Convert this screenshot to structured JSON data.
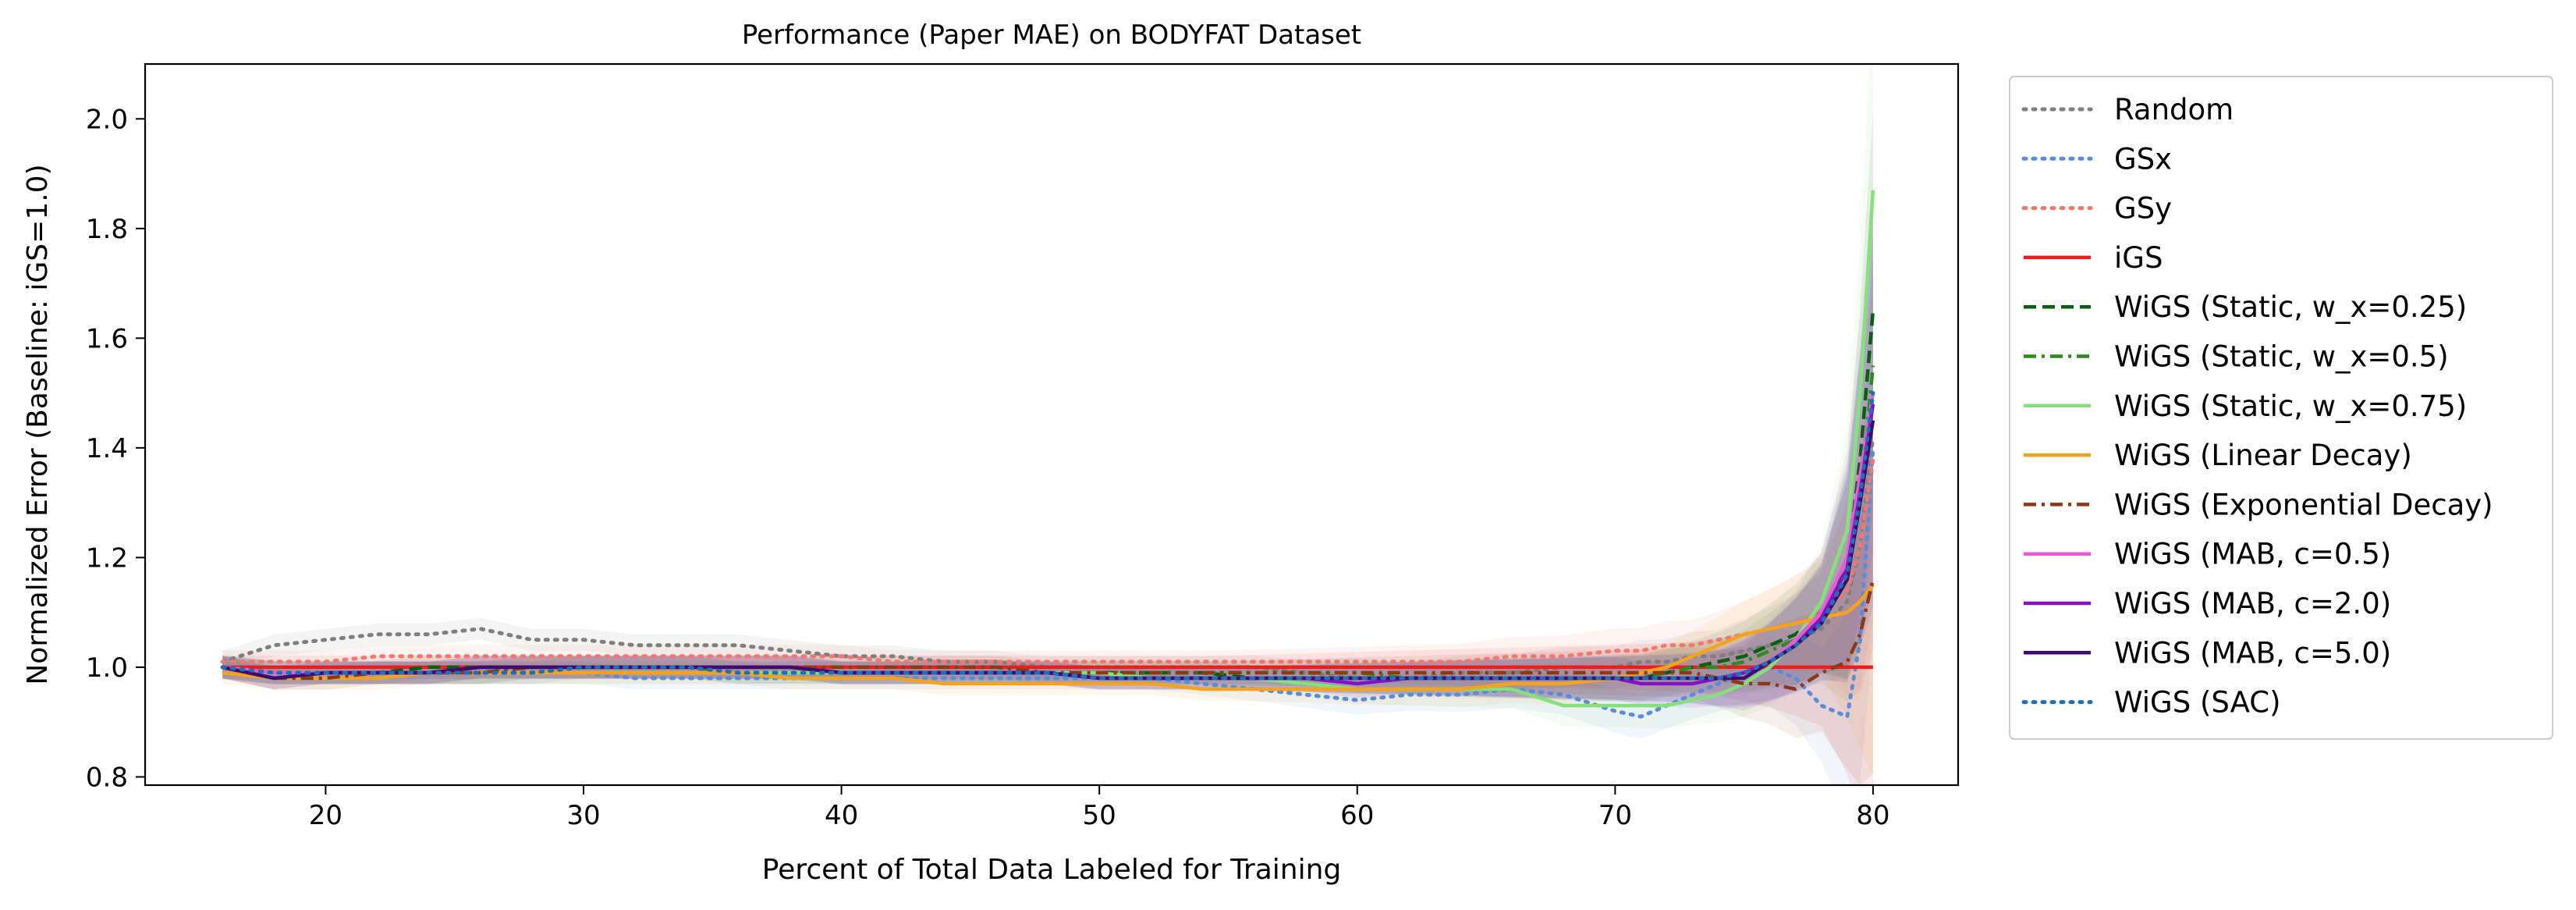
{
  "chart_data": {
    "type": "line",
    "title": "Performance (Paper MAE) on BODYFAT Dataset",
    "xlabel": "Percent of Total Data Labeled for Training",
    "ylabel": "Normalized Error (Baseline: iGS=1.0)",
    "xlim": [
      13,
      83.3
    ],
    "ylim": [
      0.785,
      2.1
    ],
    "xticks": [
      20,
      30,
      40,
      50,
      60,
      70,
      80
    ],
    "yticks": [
      0.8,
      1.0,
      1.2,
      1.4,
      1.6,
      1.8,
      2.0
    ],
    "x_tick_labels": [
      "20",
      "30",
      "40",
      "50",
      "60",
      "70",
      "80"
    ],
    "y_tick_labels": [
      "0.8",
      "1.0",
      "1.2",
      "1.4",
      "1.6",
      "1.8",
      "2.0"
    ],
    "grid": false,
    "legend_position": "outside-right",
    "x": [
      16,
      18,
      20,
      22,
      24,
      26,
      28,
      30,
      32,
      34,
      36,
      38,
      40,
      42,
      44,
      46,
      48,
      50,
      52,
      54,
      56,
      58,
      60,
      62,
      64,
      66,
      68,
      70,
      71,
      72,
      73,
      74,
      75,
      76,
      77,
      78,
      79,
      79.5,
      80
    ],
    "series": [
      {
        "name": "Random",
        "color": "#7f7f7f",
        "dash": "dot",
        "values": [
          1.01,
          1.04,
          1.05,
          1.06,
          1.06,
          1.07,
          1.05,
          1.05,
          1.04,
          1.04,
          1.04,
          1.03,
          1.02,
          1.02,
          1.01,
          1.01,
          1.0,
          1.0,
          1.0,
          1.0,
          1.0,
          0.99,
          0.98,
          0.98,
          0.99,
          0.99,
          1.0,
          1.0,
          1.01,
          1.01,
          1.02,
          1.02,
          1.03,
          1.04,
          1.05,
          1.07,
          1.12,
          1.22,
          1.42
        ]
      },
      {
        "name": "GSx",
        "color": "#5b8bd9",
        "dash": "dot",
        "values": [
          1.0,
          0.99,
          0.99,
          0.99,
          0.99,
          0.99,
          0.99,
          0.99,
          0.98,
          0.98,
          0.98,
          0.98,
          0.98,
          0.98,
          0.98,
          0.98,
          0.98,
          0.98,
          0.98,
          0.97,
          0.96,
          0.95,
          0.94,
          0.95,
          0.95,
          0.96,
          0.95,
          0.92,
          0.91,
          0.93,
          0.95,
          0.97,
          0.99,
          1.0,
          0.98,
          0.93,
          0.91,
          1.05,
          1.4
        ]
      },
      {
        "name": "GSy",
        "color": "#f07870",
        "dash": "dot",
        "values": [
          1.01,
          1.01,
          1.01,
          1.02,
          1.02,
          1.02,
          1.02,
          1.02,
          1.02,
          1.02,
          1.02,
          1.02,
          1.02,
          1.01,
          1.01,
          1.01,
          1.01,
          1.01,
          1.01,
          1.01,
          1.01,
          1.01,
          1.01,
          1.01,
          1.01,
          1.02,
          1.02,
          1.03,
          1.03,
          1.04,
          1.04,
          1.05,
          1.06,
          1.07,
          1.08,
          1.1,
          1.14,
          1.22,
          1.38
        ]
      },
      {
        "name": "iGS",
        "color": "#ee1c1c",
        "dash": "solid",
        "values": [
          1.0,
          1.0,
          1.0,
          1.0,
          1.0,
          1.0,
          1.0,
          1.0,
          1.0,
          1.0,
          1.0,
          1.0,
          1.0,
          1.0,
          1.0,
          1.0,
          1.0,
          1.0,
          1.0,
          1.0,
          1.0,
          1.0,
          1.0,
          1.0,
          1.0,
          1.0,
          1.0,
          1.0,
          1.0,
          1.0,
          1.0,
          1.0,
          1.0,
          1.0,
          1.0,
          1.0,
          1.0,
          1.0,
          1.0
        ]
      },
      {
        "name": "WiGS (Static, w_x=0.25)",
        "color": "#0b5e13",
        "dash": "dash",
        "values": [
          1.0,
          0.99,
          0.99,
          0.99,
          1.0,
          1.0,
          1.0,
          1.0,
          1.0,
          1.0,
          1.0,
          1.0,
          0.99,
          0.99,
          0.99,
          0.99,
          0.99,
          0.99,
          0.99,
          0.99,
          0.98,
          0.98,
          0.98,
          0.98,
          0.98,
          0.98,
          0.98,
          0.98,
          0.98,
          0.99,
          1.0,
          1.01,
          1.02,
          1.04,
          1.06,
          1.1,
          1.18,
          1.38,
          1.65
        ]
      },
      {
        "name": "WiGS (Static, w_x=0.5)",
        "color": "#2e8b20",
        "dash": "dashdot",
        "values": [
          1.0,
          0.99,
          0.99,
          0.99,
          0.99,
          0.99,
          1.0,
          1.0,
          1.0,
          1.0,
          0.99,
          0.99,
          0.99,
          0.99,
          0.99,
          0.99,
          0.99,
          0.99,
          0.99,
          0.99,
          0.99,
          0.99,
          0.99,
          0.98,
          0.98,
          0.98,
          0.98,
          0.98,
          0.98,
          0.99,
          1.0,
          1.0,
          1.01,
          1.03,
          1.05,
          1.09,
          1.16,
          1.3,
          1.55
        ]
      },
      {
        "name": "WiGS (Static, w_x=0.75)",
        "color": "#86e07c",
        "dash": "solid",
        "values": [
          1.0,
          0.99,
          0.99,
          0.99,
          0.99,
          0.99,
          0.99,
          0.99,
          0.99,
          0.99,
          0.99,
          0.99,
          0.99,
          0.99,
          0.99,
          0.99,
          0.99,
          0.99,
          0.98,
          0.98,
          0.98,
          0.97,
          0.96,
          0.96,
          0.96,
          0.96,
          0.93,
          0.93,
          0.93,
          0.93,
          0.94,
          0.95,
          0.97,
          1.0,
          1.05,
          1.12,
          1.25,
          1.5,
          1.87
        ]
      },
      {
        "name": "WiGS (Linear Decay)",
        "color": "#f5a31a",
        "dash": "solid",
        "values": [
          0.99,
          0.98,
          0.98,
          0.98,
          0.99,
          0.99,
          0.99,
          0.99,
          0.99,
          0.99,
          0.99,
          0.98,
          0.98,
          0.98,
          0.97,
          0.97,
          0.97,
          0.97,
          0.97,
          0.96,
          0.96,
          0.96,
          0.96,
          0.96,
          0.96,
          0.97,
          0.97,
          0.98,
          0.99,
          1.0,
          1.02,
          1.04,
          1.06,
          1.07,
          1.08,
          1.09,
          1.1,
          1.12,
          1.15
        ]
      },
      {
        "name": "WiGS (Exponential Decay)",
        "color": "#8b3a14",
        "dash": "dashdot",
        "values": [
          1.0,
          0.98,
          0.98,
          0.99,
          0.99,
          0.99,
          1.0,
          1.0,
          1.0,
          1.0,
          1.0,
          1.0,
          1.0,
          1.0,
          1.0,
          1.0,
          0.99,
          0.99,
          0.99,
          0.99,
          0.99,
          0.99,
          0.99,
          0.99,
          0.99,
          0.99,
          0.99,
          0.99,
          0.99,
          0.99,
          0.99,
          0.98,
          0.97,
          0.97,
          0.96,
          0.99,
          1.01,
          1.06,
          1.16
        ]
      },
      {
        "name": "WiGS (MAB, c=0.5)",
        "color": "#e85bd6",
        "dash": "solid",
        "values": [
          1.0,
          0.99,
          0.99,
          0.99,
          0.99,
          1.0,
          1.0,
          1.0,
          1.0,
          1.0,
          1.0,
          1.0,
          0.99,
          0.99,
          0.99,
          0.99,
          0.99,
          0.98,
          0.98,
          0.98,
          0.98,
          0.98,
          0.98,
          0.98,
          0.98,
          0.98,
          0.98,
          0.98,
          0.98,
          0.98,
          0.98,
          0.98,
          0.99,
          1.01,
          1.05,
          1.1,
          1.2,
          1.35,
          1.5
        ]
      },
      {
        "name": "WiGS (MAB, c=2.0)",
        "color": "#8410c8",
        "dash": "solid",
        "values": [
          1.0,
          0.98,
          0.99,
          0.99,
          0.99,
          1.0,
          1.0,
          1.0,
          1.0,
          1.0,
          1.0,
          1.0,
          0.99,
          0.99,
          0.99,
          0.99,
          0.99,
          0.98,
          0.98,
          0.98,
          0.98,
          0.98,
          0.97,
          0.98,
          0.98,
          0.98,
          0.98,
          0.98,
          0.97,
          0.97,
          0.97,
          0.98,
          0.99,
          1.01,
          1.04,
          1.09,
          1.18,
          1.32,
          1.48
        ]
      },
      {
        "name": "WiGS (MAB, c=5.0)",
        "color": "#3f0b6e",
        "dash": "solid",
        "values": [
          1.0,
          0.98,
          0.99,
          0.99,
          0.99,
          1.0,
          1.0,
          1.0,
          1.0,
          1.0,
          1.0,
          1.0,
          0.99,
          0.99,
          0.99,
          0.99,
          0.99,
          0.98,
          0.98,
          0.98,
          0.98,
          0.98,
          0.98,
          0.98,
          0.98,
          0.98,
          0.98,
          0.98,
          0.98,
          0.98,
          0.98,
          0.98,
          0.98,
          1.01,
          1.04,
          1.08,
          1.16,
          1.3,
          1.45
        ]
      },
      {
        "name": "WiGS (SAC)",
        "color": "#1f6fb8",
        "dash": "dot",
        "values": [
          1.0,
          0.99,
          0.99,
          0.99,
          0.99,
          0.99,
          0.99,
          1.0,
          1.0,
          1.0,
          0.99,
          0.99,
          0.99,
          0.99,
          0.99,
          0.99,
          0.99,
          0.98,
          0.98,
          0.98,
          0.98,
          0.98,
          0.98,
          0.98,
          0.98,
          0.98,
          0.98,
          0.98,
          0.98,
          0.98,
          0.98,
          0.98,
          0.99,
          1.01,
          1.04,
          1.08,
          1.17,
          1.31,
          1.5
        ]
      }
    ]
  }
}
